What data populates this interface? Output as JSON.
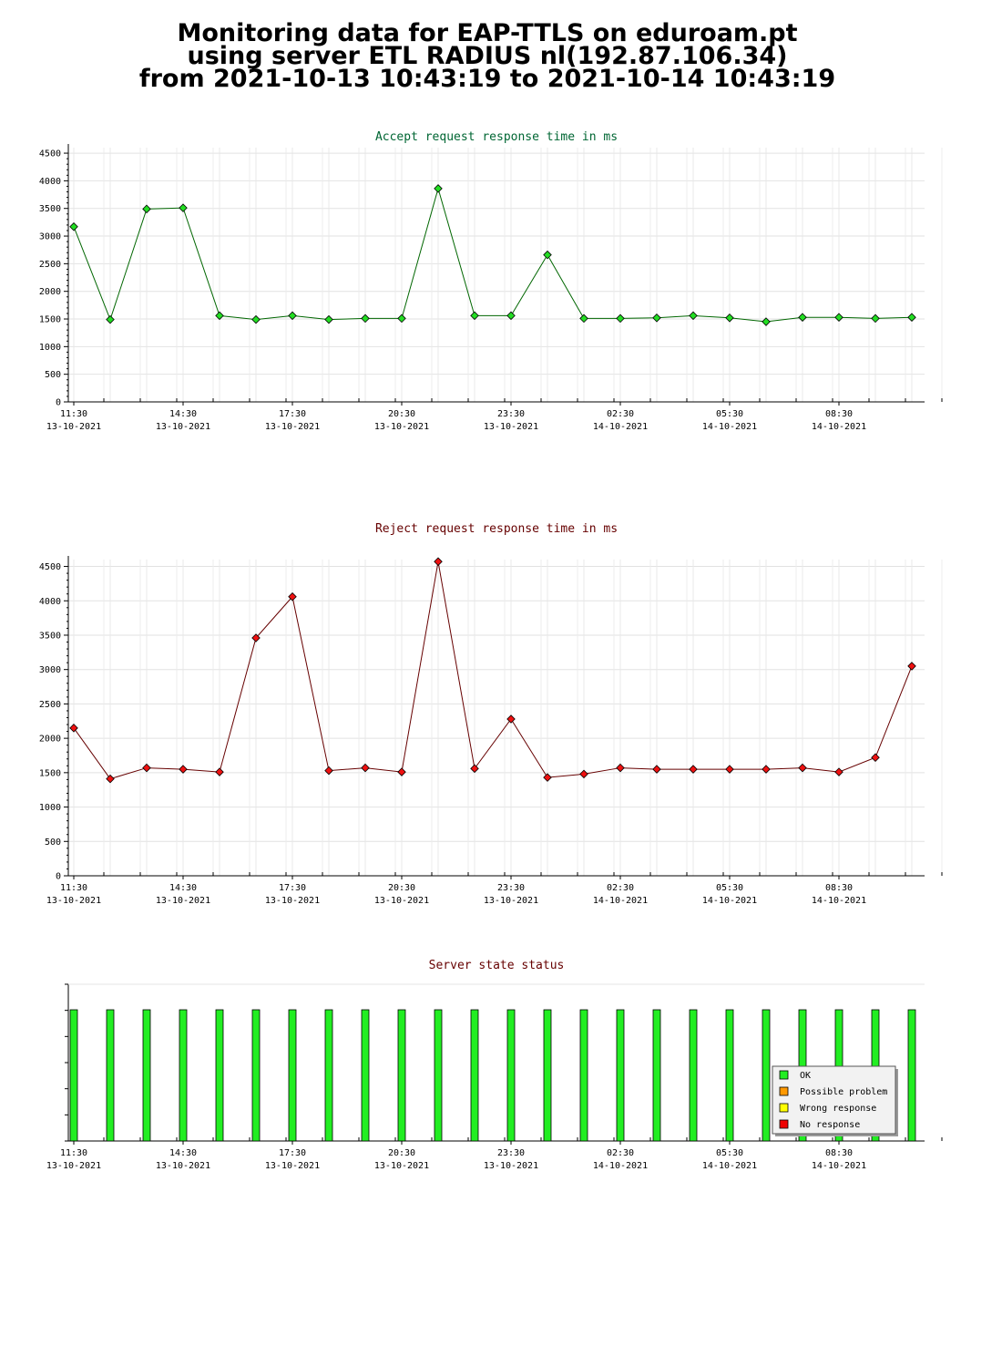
{
  "page": {
    "title_lines": [
      "Monitoring data for EAP-TTLS on eduroam.pt",
      "using server ETL RADIUS nl(192.87.106.34)",
      "from 2021-10-13 10:43:19 to 2021-10-14 10:43:19"
    ]
  },
  "x_axis": {
    "ticks": [
      {
        "time": "11:30",
        "date": "13-10-2021"
      },
      {
        "time": "14:30",
        "date": "13-10-2021"
      },
      {
        "time": "17:30",
        "date": "13-10-2021"
      },
      {
        "time": "20:30",
        "date": "13-10-2021"
      },
      {
        "time": "23:30",
        "date": "13-10-2021"
      },
      {
        "time": "02:30",
        "date": "14-10-2021"
      },
      {
        "time": "05:30",
        "date": "14-10-2021"
      },
      {
        "time": "08:30",
        "date": "14-10-2021"
      }
    ]
  },
  "chart_data": [
    {
      "type": "line",
      "title": "Accept request response time in ms",
      "ylim": [
        0,
        4600
      ],
      "yticks": [
        0,
        500,
        1000,
        1500,
        2000,
        2500,
        3000,
        3500,
        4000,
        4500
      ],
      "grid": true,
      "line_color": "#006600",
      "marker_color": "#22dd22",
      "title_color": "#006633",
      "x": [
        "11:30",
        "12:30",
        "13:30",
        "14:30",
        "15:30",
        "16:30",
        "17:30",
        "18:30",
        "19:30",
        "20:30",
        "21:30",
        "22:30",
        "23:30",
        "00:30",
        "01:30",
        "02:30",
        "03:30",
        "04:30",
        "05:30",
        "06:30",
        "07:30",
        "08:30",
        "09:30",
        "10:30"
      ],
      "values": [
        3170,
        1490,
        3490,
        3510,
        1560,
        1490,
        1560,
        1490,
        1510,
        1510,
        3860,
        1560,
        1560,
        2660,
        1510,
        1510,
        1520,
        1560,
        1520,
        1450,
        1530,
        1530,
        1510,
        1530
      ]
    },
    {
      "type": "line",
      "title": "Reject request response time in ms",
      "ylim": [
        0,
        4600
      ],
      "yticks": [
        0,
        500,
        1000,
        1500,
        2000,
        2500,
        3000,
        3500,
        4000,
        4500
      ],
      "grid": true,
      "line_color": "#660000",
      "marker_color": "#ee1111",
      "title_color": "#660000",
      "x": [
        "11:30",
        "12:30",
        "13:30",
        "14:30",
        "15:30",
        "16:30",
        "17:30",
        "18:30",
        "19:30",
        "20:30",
        "21:30",
        "22:30",
        "23:30",
        "00:30",
        "01:30",
        "02:30",
        "03:30",
        "04:30",
        "05:30",
        "06:30",
        "07:30",
        "08:30",
        "09:30",
        "10:30"
      ],
      "values": [
        2150,
        1410,
        1570,
        1550,
        1510,
        3460,
        4060,
        1530,
        1570,
        1510,
        4570,
        1560,
        2280,
        1430,
        1480,
        1570,
        1550,
        1550,
        1550,
        1550,
        1570,
        1510,
        1720,
        3050
      ]
    },
    {
      "type": "bar",
      "title": "Server state status",
      "title_color": "#660000",
      "x": [
        "11:30",
        "12:30",
        "13:30",
        "14:30",
        "15:30",
        "16:30",
        "17:30",
        "18:30",
        "19:30",
        "20:30",
        "21:30",
        "22:30",
        "23:30",
        "00:30",
        "01:30",
        "02:30",
        "03:30",
        "04:30",
        "05:30",
        "06:30",
        "07:30",
        "08:30",
        "09:30",
        "10:30"
      ],
      "states": [
        "OK",
        "OK",
        "OK",
        "OK",
        "OK",
        "OK",
        "OK",
        "OK",
        "OK",
        "OK",
        "OK",
        "OK",
        "OK",
        "OK",
        "OK",
        "OK",
        "OK",
        "OK",
        "OK",
        "OK",
        "OK",
        "OK",
        "OK",
        "OK"
      ],
      "legend": [
        {
          "label": "OK",
          "color": "#22ee22"
        },
        {
          "label": "Possible problem",
          "color": "#ff9900"
        },
        {
          "label": "Wrong response",
          "color": "#ffff00"
        },
        {
          "label": "No response",
          "color": "#ee0000"
        }
      ],
      "legend_position": "bottom-right"
    }
  ]
}
